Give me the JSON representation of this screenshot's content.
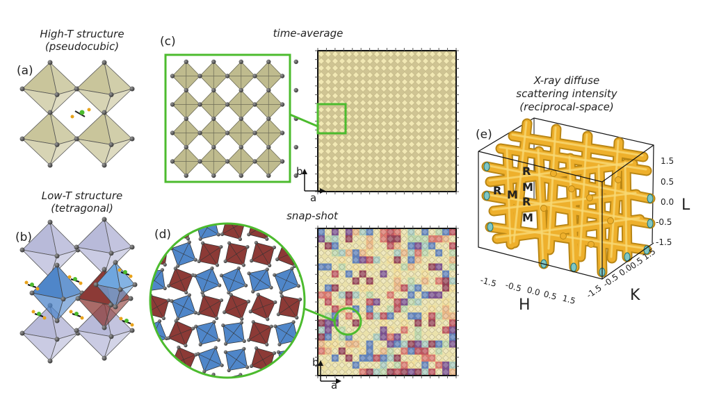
{
  "panels": {
    "a": {
      "label": "(a)",
      "title_line1": "High-T structure",
      "title_line2": "(pseudocubic)"
    },
    "b": {
      "label": "(b)",
      "title_line1": "Low-T structure",
      "title_line2": "(tetragonal)"
    },
    "c": {
      "label": "(c)",
      "title": "time-average",
      "axis_a": "a",
      "axis_b": "b"
    },
    "d": {
      "label": "(d)",
      "title": "snap-shot",
      "axis_a": "a",
      "axis_b": "b"
    },
    "e": {
      "label": "(e)",
      "title_line1": "X-ray diffuse",
      "title_line2": "scattering intensity",
      "title_line3": "(reciprocal-space)",
      "axis_h": "H",
      "axis_k": "K",
      "axis_l": "L",
      "h_ticks": [
        "-1.5",
        "-0.5",
        "0.0",
        "0.5",
        "1.5"
      ],
      "k_ticks": [
        "-1.5",
        "-0.5",
        "0.0",
        "0.5",
        "1.5"
      ],
      "l_ticks": [
        "1.5",
        "0.5",
        "0.0",
        "-0.5",
        "-1.5"
      ],
      "point_labels": [
        "R",
        "M",
        "R",
        "M",
        "R",
        "M"
      ]
    }
  },
  "colors": {
    "highlight_green": "#4cbb2e",
    "octahedron_olive": "#c9c59b",
    "tile_yellow": "#e9dfa3",
    "tile_blue": "#4f86c9",
    "tile_red": "#8c3a36",
    "iso_surface": "#eeb02c",
    "lavender": "#b8bad9"
  }
}
